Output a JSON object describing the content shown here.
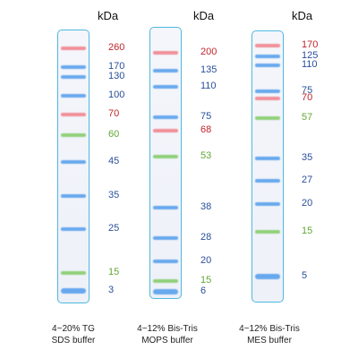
{
  "unit_label": "kDa",
  "colors": {
    "red": "#c0252c",
    "blue": "#2a4f9a",
    "green": "#63a735"
  },
  "lanes": [
    {
      "caption": [
        "4~20% TG",
        "SDS buffer"
      ],
      "bands": [
        {
          "label": "260",
          "color": "red"
        },
        {
          "label": "170",
          "color": "blue"
        },
        {
          "label": "130",
          "color": "blue"
        },
        {
          "label": "100",
          "color": "blue"
        },
        {
          "label": "70",
          "color": "red"
        },
        {
          "label": "60",
          "color": "green"
        },
        {
          "label": "45",
          "color": "blue"
        },
        {
          "label": "35",
          "color": "blue"
        },
        {
          "label": "25",
          "color": "blue"
        },
        {
          "label": "15",
          "color": "green"
        },
        {
          "label": "3",
          "color": "blue"
        }
      ]
    },
    {
      "caption": [
        "4~12% Bis-Tris",
        "MOPS buffer"
      ],
      "bands": [
        {
          "label": "200",
          "color": "red"
        },
        {
          "label": "135",
          "color": "blue"
        },
        {
          "label": "110",
          "color": "blue"
        },
        {
          "label": "75",
          "color": "blue"
        },
        {
          "label": "68",
          "color": "red"
        },
        {
          "label": "53",
          "color": "green"
        },
        {
          "label": "38",
          "color": "blue"
        },
        {
          "label": "28",
          "color": "blue"
        },
        {
          "label": "20",
          "color": "blue"
        },
        {
          "label": "15",
          "color": "green"
        },
        {
          "label": "6",
          "color": "blue"
        }
      ]
    },
    {
      "caption": [
        "4~12% Bis-Tris",
        "MES buffer"
      ],
      "bands": [
        {
          "label": "170",
          "color": "red"
        },
        {
          "label": "125",
          "color": "blue"
        },
        {
          "label": "110",
          "color": "blue"
        },
        {
          "label": "75",
          "color": "blue"
        },
        {
          "label": "70",
          "color": "red"
        },
        {
          "label": "57",
          "color": "green"
        },
        {
          "label": "35",
          "color": "blue"
        },
        {
          "label": "27",
          "color": "blue"
        },
        {
          "label": "20",
          "color": "blue"
        },
        {
          "label": "15",
          "color": "green"
        },
        {
          "label": "5",
          "color": "blue"
        }
      ]
    }
  ]
}
